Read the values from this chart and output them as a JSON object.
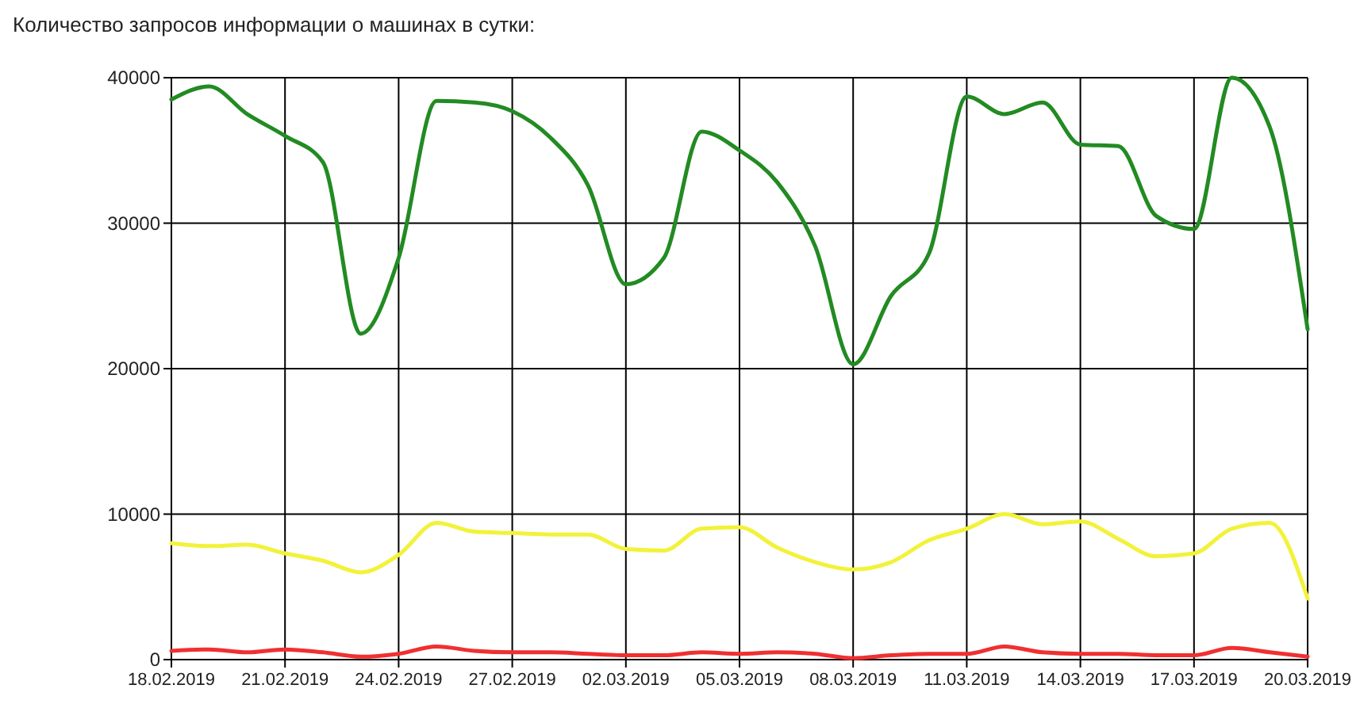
{
  "chart_data": {
    "type": "line",
    "title": "Количество запросов информации о машинах в сутки:",
    "x": [
      "2019-02-18",
      "2019-02-19",
      "2019-02-20",
      "2019-02-21",
      "2019-02-22",
      "2019-02-23",
      "2019-02-24",
      "2019-02-25",
      "2019-02-26",
      "2019-02-27",
      "2019-02-28",
      "2019-03-01",
      "2019-03-02",
      "2019-03-03",
      "2019-03-04",
      "2019-03-05",
      "2019-03-06",
      "2019-03-07",
      "2019-03-08",
      "2019-03-09",
      "2019-03-10",
      "2019-03-11",
      "2019-03-12",
      "2019-03-13",
      "2019-03-14",
      "2019-03-15",
      "2019-03-16",
      "2019-03-17",
      "2019-03-18",
      "2019-03-19",
      "2019-03-20"
    ],
    "series": [
      {
        "color": "#228b22",
        "values": [
          38500,
          39400,
          37500,
          36000,
          34200,
          22400,
          27600,
          38400,
          38300,
          37700,
          35900,
          32600,
          25800,
          27600,
          36300,
          35000,
          32800,
          28400,
          20300,
          25000,
          27900,
          38700,
          37500,
          38300,
          35400,
          35300,
          30500,
          29600,
          40000,
          36600,
          22700
        ]
      },
      {
        "color": "#f2f23a",
        "values": [
          8000,
          7800,
          7900,
          7300,
          6800,
          6000,
          7200,
          9400,
          8800,
          8700,
          8600,
          8600,
          7600,
          7500,
          9000,
          9100,
          7700,
          6700,
          6200,
          6700,
          8200,
          9000,
          10000,
          9300,
          9500,
          8300,
          7100,
          7300,
          9000,
          9400,
          4200
        ]
      },
      {
        "color": "#f03030",
        "values": [
          600,
          700,
          500,
          700,
          500,
          200,
          400,
          900,
          600,
          500,
          500,
          400,
          300,
          300,
          500,
          400,
          500,
          400,
          100,
          300,
          400,
          400,
          900,
          500,
          400,
          400,
          300,
          300,
          800,
          500,
          200
        ]
      }
    ],
    "xlim": [
      "2019-02-18",
      "2019-03-20"
    ],
    "xticks": [
      {
        "value": "2019-02-18",
        "label": "18.02.2019"
      },
      {
        "value": "2019-02-21",
        "label": "21.02.2019"
      },
      {
        "value": "2019-02-24",
        "label": "24.02.2019"
      },
      {
        "value": "2019-02-27",
        "label": "27.02.2019"
      },
      {
        "value": "2019-03-02",
        "label": "02.03.2019"
      },
      {
        "value": "2019-03-05",
        "label": "05.03.2019"
      },
      {
        "value": "2019-03-08",
        "label": "08.03.2019"
      },
      {
        "value": "2019-03-11",
        "label": "11.03.2019"
      },
      {
        "value": "2019-03-14",
        "label": "14.03.2019"
      },
      {
        "value": "2019-03-17",
        "label": "17.03.2019"
      },
      {
        "value": "2019-03-20",
        "label": "20.03.2019"
      }
    ],
    "ylim": [
      0,
      40000
    ],
    "yticks": [
      0,
      10000,
      20000,
      30000,
      40000
    ],
    "grid": true,
    "marker": "none",
    "line_style": "solid"
  }
}
